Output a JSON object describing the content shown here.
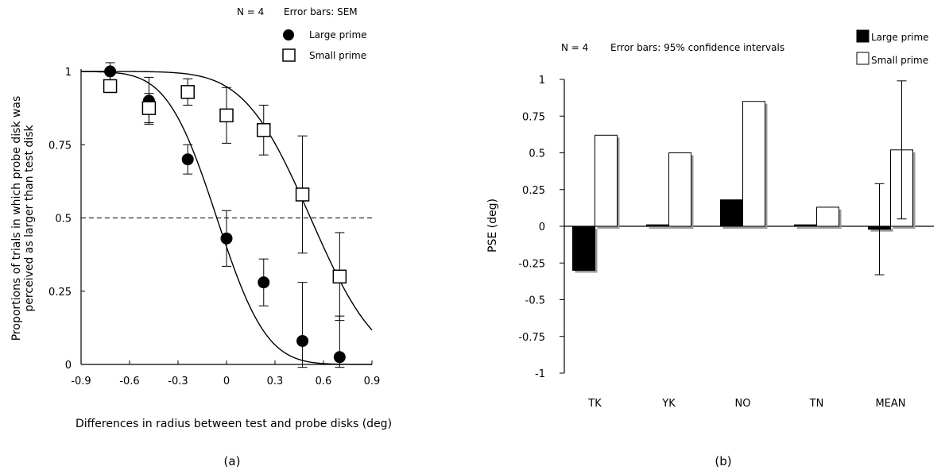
{
  "chart_data": [
    {
      "type": "scatter",
      "panel_label": "(a)",
      "header": {
        "n": "N = 4",
        "error_note": "Error bars: SEM"
      },
      "xlabel": "Differences in radius between test  and probe disks (deg)",
      "ylabel_line1": "Proportions of trials in which probe disk was",
      "ylabel_line2": "perceived as larger than test disk",
      "xlim": [
        -0.9,
        0.9
      ],
      "ylim": [
        0,
        1
      ],
      "x_ticks": [
        "-0.9",
        "-0.6",
        "-0.3",
        "0",
        "0.3",
        "0.6",
        "0.9"
      ],
      "x_tick_values": [
        -0.9,
        -0.6,
        -0.3,
        0,
        0.3,
        0.6,
        0.9
      ],
      "y_ticks": [
        "0",
        "0.25",
        "0.5",
        "0.75",
        "1"
      ],
      "y_tick_values": [
        0,
        0.25,
        0.5,
        0.75,
        1
      ],
      "reference_line": 0.5,
      "series": [
        {
          "name": "Large prime",
          "marker": "filled-circle",
          "x": [
            -0.72,
            -0.48,
            -0.24,
            0.0,
            0.23,
            0.47,
            0.7
          ],
          "y": [
            1.0,
            0.9,
            0.7,
            0.43,
            0.28,
            0.08,
            0.025
          ],
          "err": [
            0.03,
            0.08,
            0.05,
            0.095,
            0.08,
            0.2,
            0.14
          ],
          "fit": {
            "mu": -0.06,
            "sigma": 0.24
          }
        },
        {
          "name": "Small prime",
          "marker": "open-square",
          "x": [
            -0.72,
            -0.48,
            -0.24,
            0.0,
            0.23,
            0.47,
            0.7
          ],
          "y": [
            0.95,
            0.875,
            0.93,
            0.85,
            0.8,
            0.58,
            0.3
          ],
          "err": [
            0.02,
            0.05,
            0.045,
            0.095,
            0.085,
            0.2,
            0.15
          ],
          "fit": {
            "mu": 0.52,
            "sigma": 0.32
          }
        }
      ]
    },
    {
      "type": "bar",
      "panel_label": "(b)",
      "header": {
        "n": "N = 4",
        "error_note": "Error bars: 95% confidence intervals"
      },
      "ylabel": "PSE (deg)",
      "ylim": [
        -1,
        1
      ],
      "y_ticks": [
        "-1",
        "-0.75",
        "-0.5",
        "-0.25",
        "0",
        "0.25",
        "0.5",
        "0.75",
        "1"
      ],
      "y_tick_values": [
        -1,
        -0.75,
        -0.5,
        -0.25,
        0,
        0.25,
        0.5,
        0.75,
        1
      ],
      "categories": [
        "TK",
        "YK",
        "NO",
        "TN",
        "MEAN"
      ],
      "series": [
        {
          "name": "Large prime",
          "color": "#000000",
          "values": [
            -0.3,
            0.01,
            0.18,
            0.01,
            -0.02
          ]
        },
        {
          "name": "Small prime",
          "color": "#ffffff",
          "values": [
            0.62,
            0.5,
            0.85,
            0.13,
            0.52
          ]
        }
      ],
      "error_bars": [
        {
          "category": "MEAN",
          "series": "Large prime",
          "low": -0.33,
          "high": 0.29
        },
        {
          "category": "MEAN",
          "series": "Small prime",
          "low": 0.05,
          "high": 0.99
        }
      ]
    }
  ]
}
